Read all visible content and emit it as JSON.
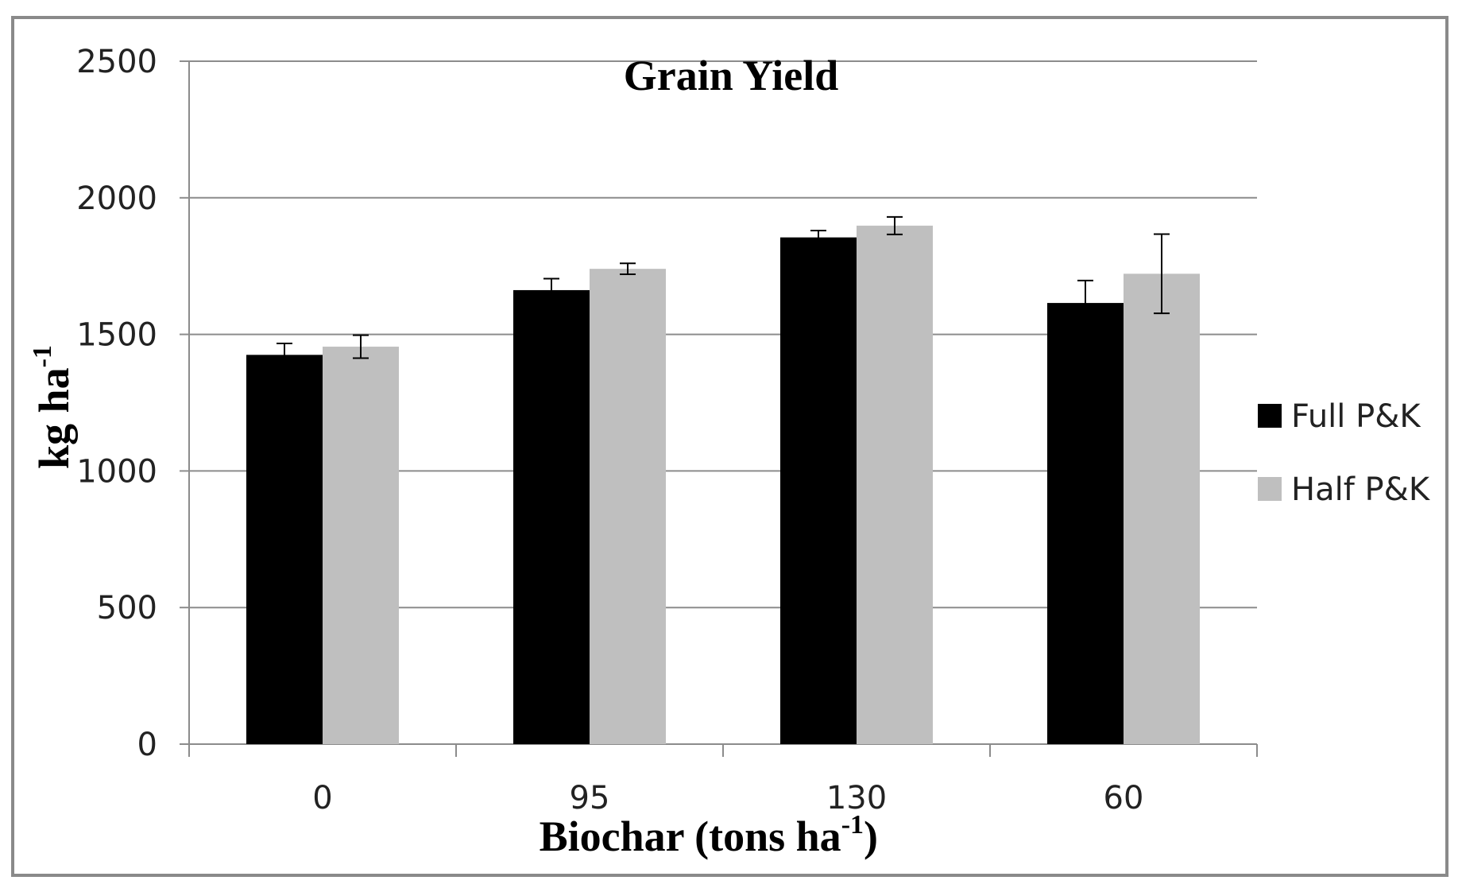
{
  "chart_data": {
    "type": "bar",
    "title": "Grain Yield",
    "xlabel": {
      "text": "Biochar (tons ha",
      "superscript": "-1",
      "suffix": ")"
    },
    "ylabel": {
      "text": "kg ha",
      "superscript": "-1"
    },
    "categories": [
      "0",
      "95",
      "130",
      "60"
    ],
    "ylim": [
      0,
      2500
    ],
    "yticks": [
      0,
      500,
      1000,
      1500,
      2000,
      2500
    ],
    "grid": true,
    "legend_position": "right",
    "series": [
      {
        "name": "Full P&K",
        "color": "#000000",
        "values": [
          1425,
          1662,
          1855,
          1615
        ],
        "errors": [
          42,
          42,
          25,
          82
        ]
      },
      {
        "name": "Half P&K",
        "color": "#bfbfbf",
        "values": [
          1455,
          1740,
          1898,
          1722
        ],
        "errors": [
          42,
          20,
          32,
          145
        ]
      }
    ]
  }
}
